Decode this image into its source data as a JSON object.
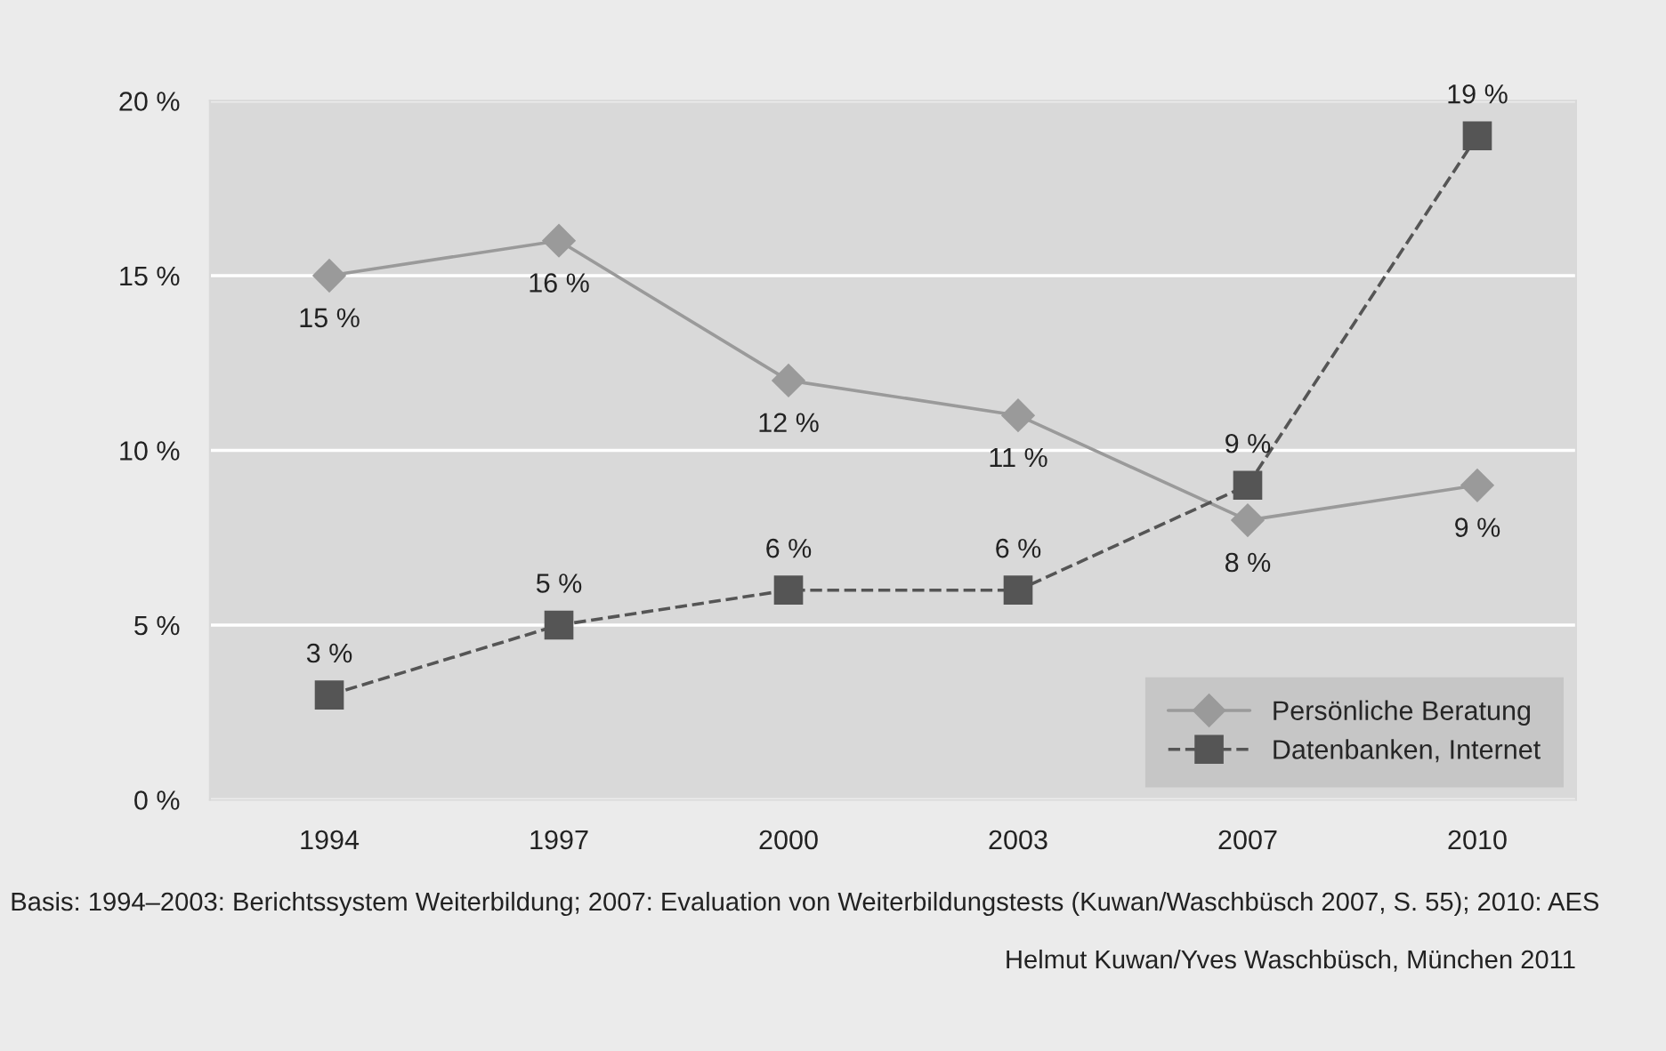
{
  "chart_data": {
    "type": "line",
    "categories": [
      "1994",
      "1997",
      "2000",
      "2003",
      "2007",
      "2010"
    ],
    "series": [
      {
        "name": "Persönliche Beratung",
        "color": "#9a9a9a",
        "marker": "diamond",
        "line_style": "solid",
        "values": [
          15,
          16,
          12,
          11,
          8,
          9
        ],
        "value_labels": [
          "15 %",
          "16 %",
          "12 %",
          "11 %",
          "8 %",
          "9 %"
        ]
      },
      {
        "name": "Datenbanken, Internet",
        "color": "#555555",
        "marker": "square",
        "line_style": "dashed",
        "values": [
          3,
          5,
          6,
          6,
          9,
          19
        ],
        "value_labels": [
          "3 %",
          "5 %",
          "6 %",
          "6 %",
          "9 %",
          "19 %"
        ]
      }
    ],
    "ylim": [
      0,
      20
    ],
    "yticks": [
      {
        "value": 0,
        "label": "0 %"
      },
      {
        "value": 5,
        "label": "5 %"
      },
      {
        "value": 10,
        "label": "10 %"
      },
      {
        "value": 15,
        "label": "15 %"
      },
      {
        "value": 20,
        "label": "20 %"
      }
    ],
    "grid": "y",
    "legend": "bottom right",
    "annotations": [
      "Basis: 1994–2003: Berichtssystem Weiterbildung; 2007: Evaluation von Weiterbildungstests (Kuwan/Waschbüsch 2007, S. 55); 2010: AES",
      "Helmut Kuwan/Yves Waschbüsch, München 2011"
    ]
  }
}
